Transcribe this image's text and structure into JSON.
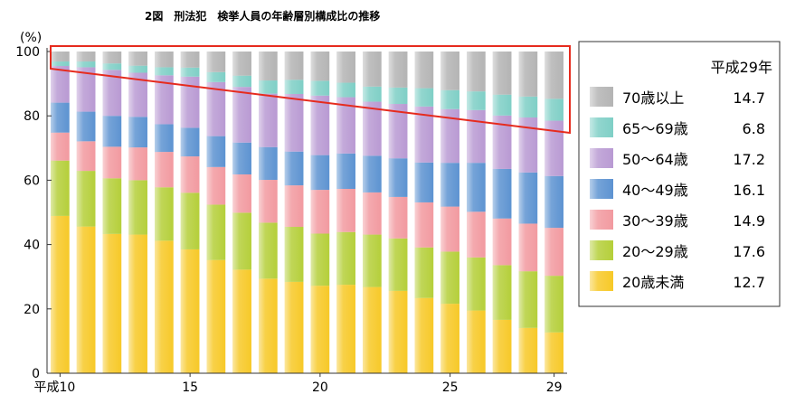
{
  "chart_data": {
    "type": "bar",
    "stacked": true,
    "title": "2図　刑法犯　検挙人員の年齢層別構成比の推移",
    "ylabel": "(%)",
    "xlabel": "",
    "ylim": [
      0,
      100
    ],
    "yticks": [
      "0",
      "20",
      "40",
      "60",
      "80",
      "100"
    ],
    "x_tick_labels": [
      "平成10",
      "15",
      "20",
      "25",
      "29"
    ],
    "categories": [
      "10",
      "11",
      "12",
      "13",
      "14",
      "15",
      "16",
      "17",
      "18",
      "19",
      "20",
      "21",
      "22",
      "23",
      "24",
      "25",
      "26",
      "27",
      "28",
      "29"
    ],
    "legend_title": "平成29年",
    "series": [
      {
        "name": "20歳未満",
        "color": "#f7c928",
        "latest": "12.7",
        "values": [
          48.9,
          45.6,
          43.3,
          43.1,
          41.2,
          38.5,
          35.2,
          32.2,
          29.4,
          28.4,
          27.2,
          27.5,
          26.8,
          25.6,
          23.4,
          21.6,
          19.5,
          16.6,
          14.1,
          12.7
        ]
      },
      {
        "name": "20～29歳",
        "color": "#b5cf3a",
        "latest": "17.6",
        "values": [
          17.2,
          17.3,
          17.3,
          16.9,
          16.6,
          17.6,
          17.2,
          17.7,
          17.4,
          17.1,
          16.2,
          16.4,
          16.3,
          16.3,
          15.7,
          16.2,
          16.5,
          17.0,
          17.6,
          17.6
        ]
      },
      {
        "name": "30～39歳",
        "color": "#f29aa0",
        "latest": "14.9",
        "values": [
          8.7,
          9.2,
          9.8,
          10.2,
          11.0,
          11.3,
          11.7,
          11.9,
          13.3,
          12.9,
          13.6,
          13.4,
          13.1,
          12.9,
          14.0,
          14.0,
          14.2,
          14.5,
          14.8,
          14.9
        ]
      },
      {
        "name": "40～49歳",
        "color": "#5d93d1",
        "latest": "16.1",
        "values": [
          9.3,
          9.2,
          9.6,
          9.5,
          8.6,
          8.9,
          9.6,
          9.9,
          10.2,
          10.5,
          10.8,
          11.0,
          11.4,
          12.0,
          12.4,
          13.6,
          15.2,
          15.4,
          15.9,
          16.1
        ]
      },
      {
        "name": "50～64歳",
        "color": "#b99ad3",
        "latest": "17.2",
        "values": [
          11.4,
          13.8,
          14.3,
          13.7,
          15.2,
          15.9,
          16.8,
          17.3,
          16.6,
          17.9,
          18.5,
          17.5,
          16.8,
          16.9,
          17.4,
          16.7,
          16.4,
          16.6,
          17.1,
          17.2
        ]
      },
      {
        "name": "65～69歳",
        "color": "#7fcfc6",
        "latest": "6.8",
        "values": [
          1.4,
          1.8,
          2.0,
          2.2,
          2.5,
          2.8,
          3.1,
          3.5,
          4.1,
          4.4,
          4.6,
          4.5,
          4.7,
          5.1,
          5.7,
          5.9,
          5.8,
          6.5,
          6.5,
          6.8
        ]
      },
      {
        "name": "70歳以上",
        "color": "#b4b4b4",
        "latest": "14.7",
        "values": [
          3.1,
          3.1,
          3.7,
          4.4,
          4.9,
          5.0,
          6.4,
          7.5,
          9.0,
          8.8,
          9.1,
          9.7,
          10.9,
          11.2,
          11.4,
          12.0,
          12.4,
          13.4,
          14.0,
          14.7
        ]
      }
    ]
  }
}
